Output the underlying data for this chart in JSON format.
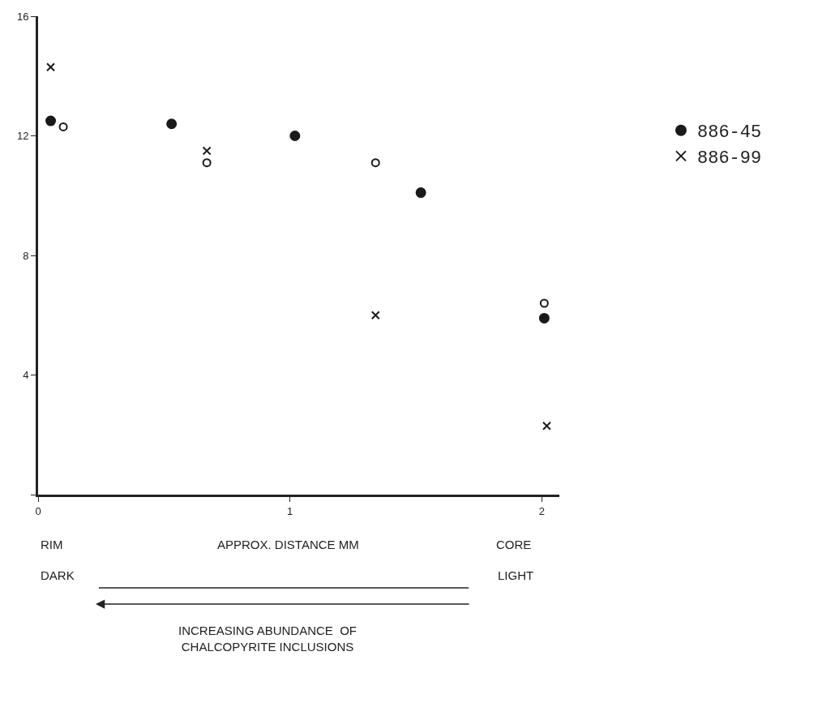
{
  "chart_data": {
    "type": "scatter",
    "xlabel": "APPROX. DISTANCE MM",
    "xlim": [
      0,
      2.07
    ],
    "xticks": [
      0,
      1,
      2
    ],
    "ylim": [
      0,
      16
    ],
    "yticks": [
      {
        "value": 0,
        "label": null
      },
      4,
      8,
      12,
      16
    ],
    "legend": "right",
    "series": [
      {
        "name": "886-45",
        "color": "#1a1a1a",
        "marker": "circle",
        "x": [
          0.05,
          0.53,
          1.02,
          1.52,
          2.01
        ],
        "values": [
          12.5,
          12.4,
          12.0,
          10.1,
          5.9
        ]
      },
      {
        "color": "#1a1a1a",
        "marker": "circle-open",
        "x": [
          0.1,
          0.67,
          1.34,
          2.01
        ],
        "values": [
          12.3,
          11.1,
          11.1,
          6.4
        ]
      },
      {
        "name": "886-99",
        "color": "#1a1a1a",
        "marker": "cross",
        "x": [
          0.05,
          0.67,
          1.34,
          2.02
        ],
        "values": [
          14.3,
          11.5,
          6.0,
          2.3
        ]
      }
    ],
    "annotations": [
      "RIM",
      "CORE",
      "DARK",
      "LIGHT",
      "INCREASING ABUNDANCE  OF\nCHALCOPYRITE INCLUSIONS"
    ]
  }
}
